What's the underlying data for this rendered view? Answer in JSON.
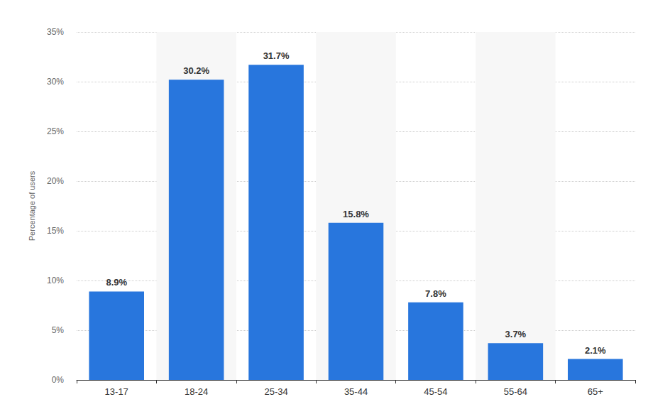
{
  "chart_data": {
    "type": "bar",
    "y_label": "Percentage of users",
    "categories": [
      "13-17",
      "18-24",
      "25-34",
      "35-44",
      "45-54",
      "55-64",
      "65+"
    ],
    "values": [
      8.9,
      30.2,
      31.7,
      15.8,
      7.8,
      3.7,
      2.1
    ],
    "value_labels": [
      "8.9%",
      "30.2%",
      "31.7%",
      "15.8%",
      "7.8%",
      "3.7%",
      "2.1%"
    ],
    "color": "#2876dd",
    "ylim": [
      0,
      35
    ],
    "yticks": [
      {
        "value": 0,
        "label": "0%"
      },
      {
        "value": 5,
        "label": "5%"
      },
      {
        "value": 10,
        "label": "10%"
      },
      {
        "value": 15,
        "label": "15%"
      },
      {
        "value": 20,
        "label": "20%"
      },
      {
        "value": 25,
        "label": "25%"
      },
      {
        "value": 30,
        "label": "30%"
      },
      {
        "value": 35,
        "label": "35%"
      }
    ],
    "grid": true,
    "data_labels": true
  }
}
